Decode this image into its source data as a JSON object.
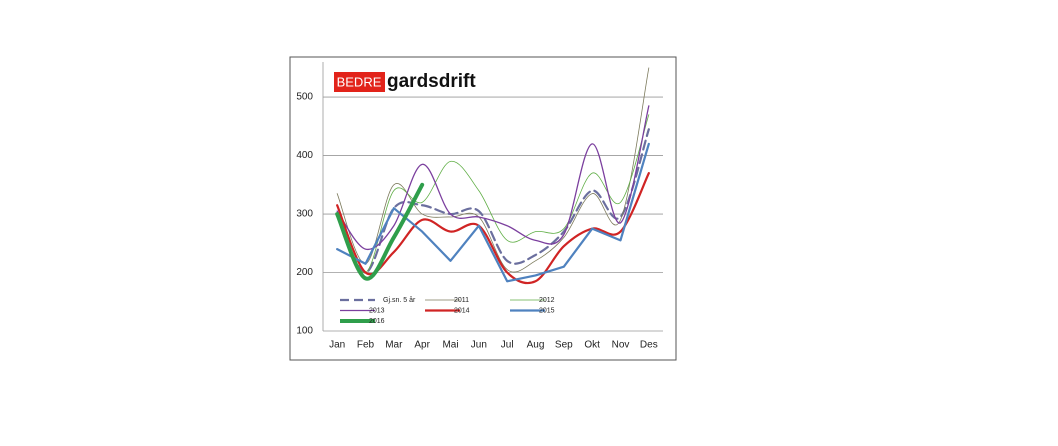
{
  "chart_data": {
    "type": "line",
    "logo": {
      "badge": "BEDRE",
      "name": "gardsdrift"
    },
    "categories": [
      "Jan",
      "Feb",
      "Mar",
      "Apr",
      "Mai",
      "Jun",
      "Jul",
      "Aug",
      "Sep",
      "Okt",
      "Nov",
      "Des"
    ],
    "ylim": [
      100,
      560
    ],
    "yticks": [
      100,
      200,
      300,
      400,
      500
    ],
    "grid": true,
    "series": [
      {
        "name": "Gj.sn. 5 år",
        "color": "#6b6f9e",
        "weight": "bold",
        "dash": true,
        "smooth": true,
        "values": [
          300,
          200,
          310,
          315,
          300,
          305,
          220,
          230,
          270,
          340,
          295,
          445
        ]
      },
      {
        "name": "2011",
        "color": "#7c7a5c",
        "weight": "thin",
        "dash": false,
        "smooth": true,
        "values": [
          335,
          215,
          350,
          300,
          295,
          295,
          205,
          220,
          260,
          335,
          290,
          550
        ]
      },
      {
        "name": "2012",
        "color": "#5fae45",
        "weight": "thin",
        "dash": false,
        "smooth": true,
        "values": [
          300,
          200,
          340,
          320,
          390,
          340,
          255,
          270,
          275,
          370,
          320,
          470
        ]
      },
      {
        "name": "2013",
        "color": "#7b3f9e",
        "weight": "medium",
        "dash": false,
        "smooth": true,
        "values": [
          305,
          240,
          280,
          385,
          300,
          295,
          280,
          255,
          265,
          420,
          285,
          485
        ]
      },
      {
        "name": "2014",
        "color": "#d02424",
        "weight": "bold",
        "dash": false,
        "smooth": true,
        "values": [
          315,
          200,
          235,
          290,
          270,
          280,
          200,
          185,
          245,
          275,
          270,
          370
        ]
      },
      {
        "name": "2015",
        "color": "#4f82bf",
        "weight": "bold",
        "dash": false,
        "smooth": false,
        "values": [
          240,
          215,
          310,
          270,
          220,
          280,
          185,
          195,
          210,
          275,
          255,
          420
        ]
      },
      {
        "name": "2016",
        "color": "#2f9e4b",
        "weight": "heavy",
        "dash": false,
        "smooth": true,
        "values": [
          300,
          190,
          260,
          350,
          null,
          null,
          null,
          null,
          null,
          null,
          null,
          null
        ]
      }
    ]
  }
}
